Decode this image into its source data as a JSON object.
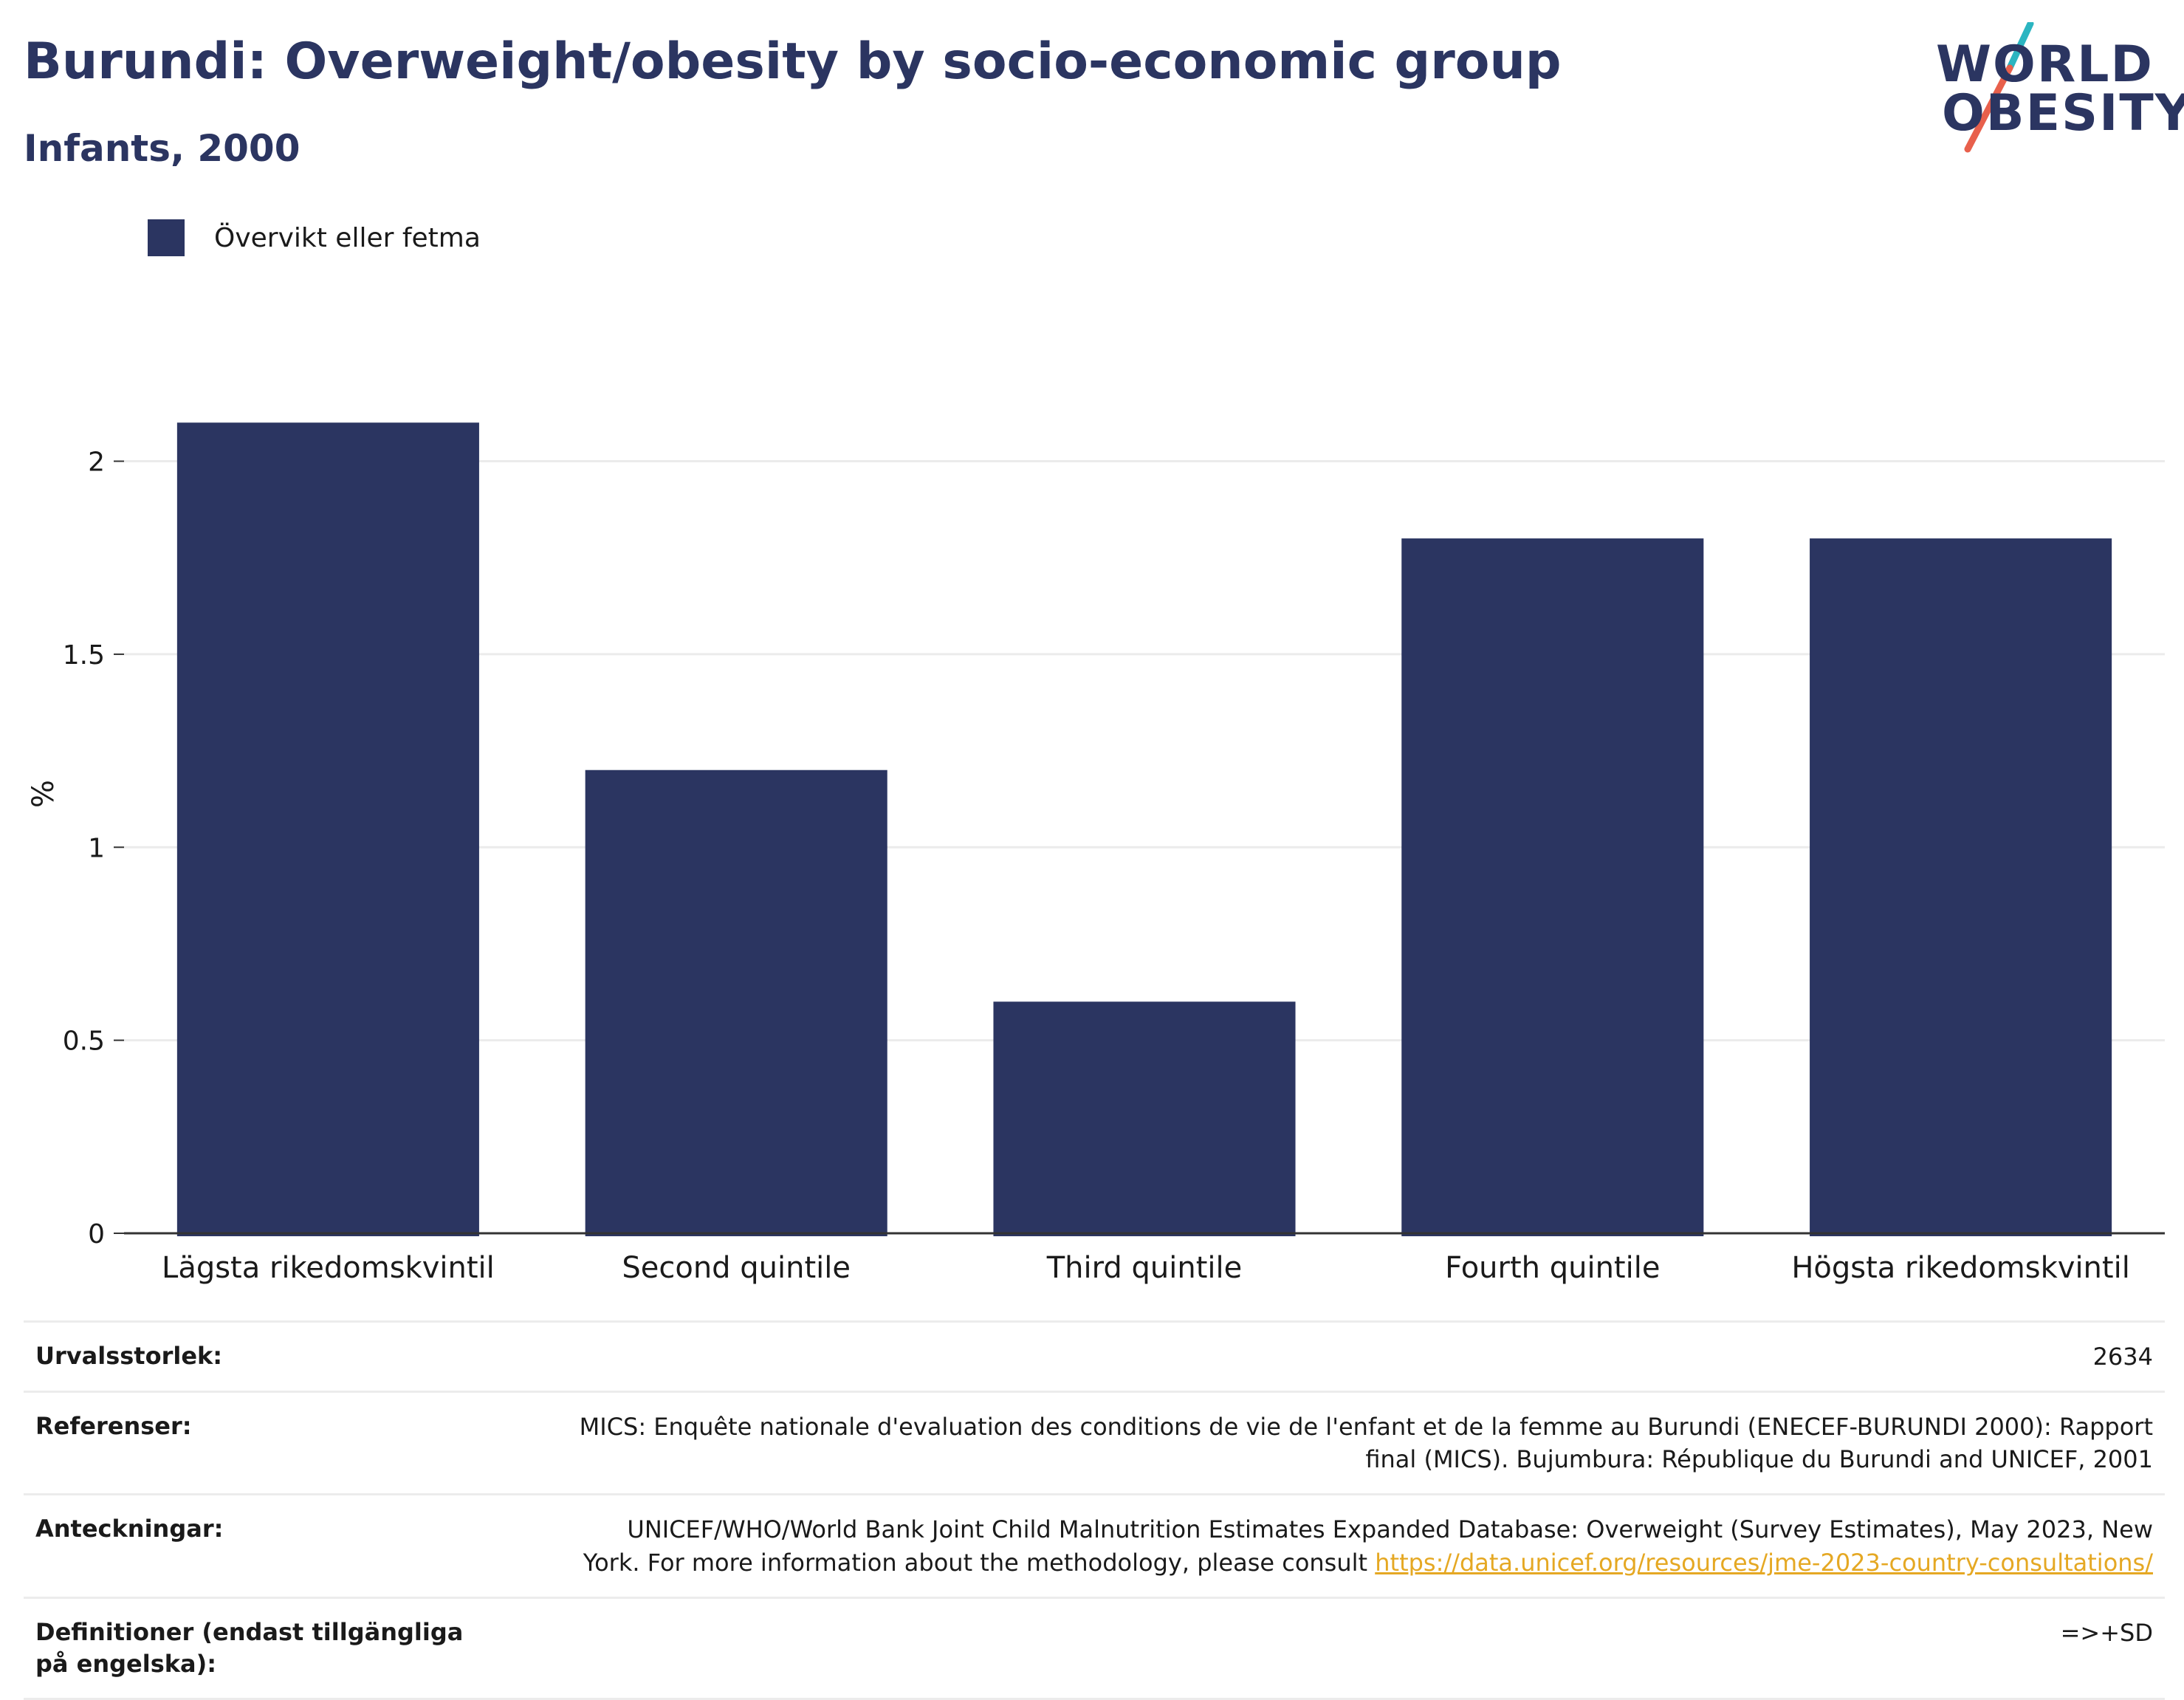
{
  "header": {
    "title": "Burundi: Overweight/obesity by socio-economic group",
    "subtitle": "Infants, 2000"
  },
  "logo": {
    "line1": "WORLD",
    "line2": "OBESITY",
    "colors": [
      "#2b3561",
      "#2bb5c1",
      "#e8604c"
    ]
  },
  "legend": {
    "label": "Övervikt eller fetma",
    "color": "#2b3561"
  },
  "chart_data": {
    "type": "bar",
    "categories": [
      "Lägsta rikedomskvintil",
      "Second quintile",
      "Third quintile",
      "Fourth quintile",
      "Högsta rikedomskvintil"
    ],
    "series": [
      {
        "name": "Övervikt eller fetma",
        "values": [
          2.1,
          1.2,
          0.6,
          1.8,
          1.8
        ],
        "color": "#2b3561"
      }
    ],
    "ylabel": "%",
    "ylim": [
      0,
      2.2
    ],
    "yticks": [
      0,
      0.5,
      1,
      1.5,
      2
    ],
    "ytick_labels": [
      "0",
      "0.5",
      "1",
      "1.5",
      "2"
    ],
    "grid": true,
    "legend_position": "top-left"
  },
  "info": {
    "rows": [
      {
        "key": "Urvalsstorlek:",
        "value": "2634"
      },
      {
        "key": "Referenser:",
        "value": "MICS: Enquête nationale d'evaluation des conditions de vie de l'enfant et de la femme au Burundi (ENECEF-BURUNDI 2000): Rapport final (MICS). Bujumbura: République du Burundi and UNICEF, 2001"
      },
      {
        "key": "Anteckningar:",
        "value": "UNICEF/WHO/World Bank Joint Child Malnutrition Estimates Expanded Database: Overweight (Survey Estimates), May 2023, New York. For more information about the methodology, please consult ",
        "link": "https://data.unicef.org/resources/jme-2023-country-consultations/"
      },
      {
        "key": "Definitioner (endast tillgängliga på engelska):",
        "value": "=>+SD"
      }
    ]
  }
}
